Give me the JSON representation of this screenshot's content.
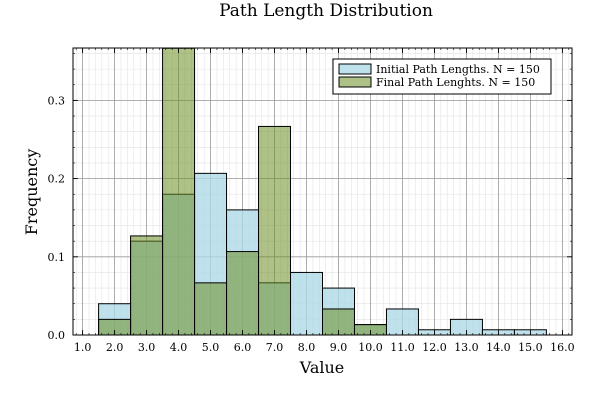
{
  "chart_data": {
    "type": "bar",
    "title": "Path Length Distribution",
    "xlabel": "Value",
    "ylabel": "Frequency",
    "xlim": [
      0.7,
      16.3
    ],
    "ylim": [
      0,
      0.367
    ],
    "bin_width": 1,
    "x_ticks": [
      "1.0",
      "2.0",
      "3.0",
      "4.0",
      "5.0",
      "6.0",
      "7.0",
      "8.0",
      "9.0",
      "10.0",
      "11.0",
      "12.0",
      "13.0",
      "14.0",
      "15.0",
      "16.0"
    ],
    "y_ticks": [
      "0.0",
      "0.1",
      "0.2",
      "0.3"
    ],
    "grid": true,
    "legend_position": "top-right",
    "series": [
      {
        "name": "Initial Path Lengths. N = 150",
        "color": "#add8e6",
        "bin_starts": [
          1.5,
          2.5,
          3.5,
          4.5,
          5.5,
          6.5,
          7.5,
          8.5,
          9.5,
          10.5,
          11.5,
          12.5,
          13.5,
          14.5
        ],
        "values": [
          0.04,
          0.12,
          0.18,
          0.2067,
          0.16,
          0.0667,
          0.08,
          0.06,
          0.0133,
          0.0333,
          0.0067,
          0.02,
          0.0067,
          0.0067
        ]
      },
      {
        "name": "Final Path Lenghts. N = 150",
        "color": "#6b8e23",
        "bin_starts": [
          1.5,
          2.5,
          3.5,
          4.5,
          5.5,
          6.5,
          8.5,
          9.5
        ],
        "values": [
          0.02,
          0.1267,
          0.3667,
          0.0667,
          0.1067,
          0.2667,
          0.0333,
          0.0133
        ]
      }
    ]
  }
}
